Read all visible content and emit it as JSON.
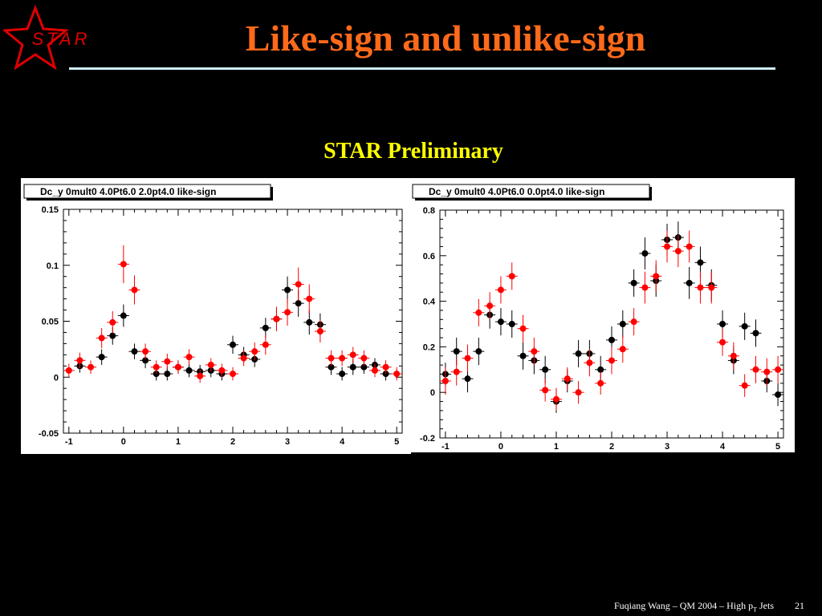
{
  "logo": {
    "text": "STAR"
  },
  "title": "Like-sign and unlike-sign",
  "subtitle": "STAR Preliminary",
  "footer": {
    "text_pre": "Fuqiang Wang – QM 2004 – High p",
    "sub": "T",
    "text_post": " Jets",
    "page": "21"
  },
  "colors": {
    "background": "#000000",
    "title": "#ff6a1a",
    "subtitle": "#ffff00",
    "series_black": "#000000",
    "series_red": "#ff0000"
  },
  "chart_data": [
    {
      "type": "scatter",
      "title": "Dc_y 0mult0 4.0Pt6.0 2.0pt4.0 like-sign",
      "xlim": [
        -1.1,
        5.1
      ],
      "ylim": [
        -0.05,
        0.15
      ],
      "xticks": [
        -1,
        0,
        1,
        2,
        3,
        4,
        5
      ],
      "yticks": [
        -0.05,
        0,
        0.05,
        0.1,
        0.15
      ],
      "ytick_labels": [
        "-0.05",
        "0",
        "0.05",
        "0.1",
        "0.15"
      ],
      "grid": false,
      "series": [
        {
          "color": "black",
          "x": [
            -0.8,
            -0.4,
            -0.2,
            0.0,
            0.2,
            0.4,
            0.6,
            0.8,
            1.0,
            1.2,
            1.4,
            1.6,
            1.8,
            2.0,
            2.2,
            2.4,
            2.6,
            2.8,
            3.0,
            3.2,
            3.4,
            3.6,
            3.8,
            4.0,
            4.2,
            4.4,
            4.6,
            4.8
          ],
          "y": [
            0.01,
            0.018,
            0.037,
            0.055,
            0.023,
            0.015,
            0.003,
            0.003,
            0.009,
            0.006,
            0.005,
            0.006,
            0.003,
            0.029,
            0.02,
            0.016,
            0.044,
            0.052,
            0.078,
            0.066,
            0.049,
            0.047,
            0.009,
            0.003,
            0.009,
            0.009,
            0.011,
            0.003
          ],
          "err": [
            0.006,
            0.007,
            0.008,
            0.01,
            0.007,
            0.007,
            0.006,
            0.006,
            0.006,
            0.006,
            0.006,
            0.006,
            0.006,
            0.008,
            0.007,
            0.007,
            0.009,
            0.01,
            0.012,
            0.012,
            0.011,
            0.01,
            0.007,
            0.006,
            0.007,
            0.006,
            0.006,
            0.006
          ]
        },
        {
          "color": "red",
          "x": [
            -1.0,
            -0.8,
            -0.6,
            -0.4,
            -0.2,
            0.0,
            0.2,
            0.4,
            0.6,
            0.8,
            1.0,
            1.2,
            1.4,
            1.6,
            1.8,
            2.0,
            2.2,
            2.4,
            2.6,
            2.8,
            3.0,
            3.2,
            3.4,
            3.6,
            3.8,
            4.0,
            4.2,
            4.4,
            4.6,
            4.8,
            5.0
          ],
          "y": [
            0.006,
            0.015,
            0.009,
            0.035,
            0.049,
            0.101,
            0.078,
            0.023,
            0.009,
            0.014,
            0.009,
            0.018,
            0.001,
            0.011,
            0.006,
            0.003,
            0.017,
            0.023,
            0.029,
            0.052,
            0.058,
            0.083,
            0.07,
            0.041,
            0.017,
            0.017,
            0.02,
            0.017,
            0.006,
            0.009,
            0.003
          ],
          "err": [
            0.006,
            0.007,
            0.006,
            0.009,
            0.01,
            0.017,
            0.013,
            0.007,
            0.006,
            0.007,
            0.006,
            0.007,
            0.006,
            0.006,
            0.006,
            0.006,
            0.007,
            0.008,
            0.009,
            0.011,
            0.012,
            0.015,
            0.013,
            0.01,
            0.007,
            0.007,
            0.007,
            0.007,
            0.006,
            0.006,
            0.006
          ]
        }
      ]
    },
    {
      "type": "scatter",
      "title": "Dc_y 0mult0 4.0Pt6.0 0.0pt4.0 like-sign",
      "xlim": [
        -1.1,
        5.1
      ],
      "ylim": [
        -0.2,
        0.8
      ],
      "xticks": [
        -1,
        0,
        1,
        2,
        3,
        4,
        5
      ],
      "yticks": [
        -0.2,
        0,
        0.2,
        0.4,
        0.6,
        0.8
      ],
      "ytick_labels": [
        "-0.2",
        "0",
        "0.2",
        "0.4",
        "0.6",
        "0.8"
      ],
      "grid": false,
      "series": [
        {
          "color": "black",
          "x": [
            -1.0,
            -0.8,
            -0.6,
            -0.4,
            -0.2,
            0.0,
            0.2,
            0.4,
            0.6,
            0.8,
            1.0,
            1.2,
            1.4,
            1.6,
            1.8,
            2.0,
            2.2,
            2.4,
            2.6,
            2.8,
            3.0,
            3.2,
            3.4,
            3.6,
            3.8,
            4.0,
            4.2,
            4.4,
            4.6,
            4.8,
            5.0
          ],
          "y": [
            0.08,
            0.18,
            0.06,
            0.18,
            0.34,
            0.31,
            0.3,
            0.16,
            0.14,
            0.1,
            -0.04,
            0.05,
            0.17,
            0.17,
            0.1,
            0.23,
            0.3,
            0.48,
            0.61,
            0.49,
            0.67,
            0.68,
            0.48,
            0.57,
            0.47,
            0.3,
            0.14,
            0.29,
            0.26,
            0.05,
            -0.01
          ],
          "err": [
            0.05,
            0.06,
            0.06,
            0.06,
            0.06,
            0.06,
            0.06,
            0.06,
            0.06,
            0.06,
            0.05,
            0.05,
            0.06,
            0.06,
            0.06,
            0.06,
            0.06,
            0.06,
            0.07,
            0.07,
            0.07,
            0.07,
            0.07,
            0.07,
            0.07,
            0.06,
            0.06,
            0.06,
            0.06,
            0.05,
            0.05
          ]
        },
        {
          "color": "red",
          "x": [
            -1.0,
            -0.8,
            -0.6,
            -0.4,
            -0.2,
            0.0,
            0.2,
            0.4,
            0.6,
            0.8,
            1.0,
            1.2,
            1.4,
            1.6,
            1.8,
            2.0,
            2.2,
            2.4,
            2.6,
            2.8,
            3.0,
            3.2,
            3.4,
            3.6,
            3.8,
            4.0,
            4.2,
            4.4,
            4.6,
            4.8,
            5.0
          ],
          "y": [
            0.05,
            0.09,
            0.15,
            0.35,
            0.38,
            0.45,
            0.51,
            0.28,
            0.18,
            0.01,
            -0.03,
            0.06,
            0.0,
            0.13,
            0.04,
            0.14,
            0.19,
            0.31,
            0.46,
            0.51,
            0.64,
            0.62,
            0.64,
            0.46,
            0.46,
            0.22,
            0.16,
            0.03,
            0.1,
            0.09,
            0.1
          ],
          "err": [
            0.06,
            0.06,
            0.06,
            0.06,
            0.06,
            0.06,
            0.06,
            0.06,
            0.06,
            0.05,
            0.05,
            0.05,
            0.05,
            0.06,
            0.05,
            0.06,
            0.06,
            0.06,
            0.07,
            0.07,
            0.07,
            0.07,
            0.07,
            0.07,
            0.07,
            0.06,
            0.06,
            0.05,
            0.06,
            0.06,
            0.06
          ]
        }
      ]
    }
  ]
}
